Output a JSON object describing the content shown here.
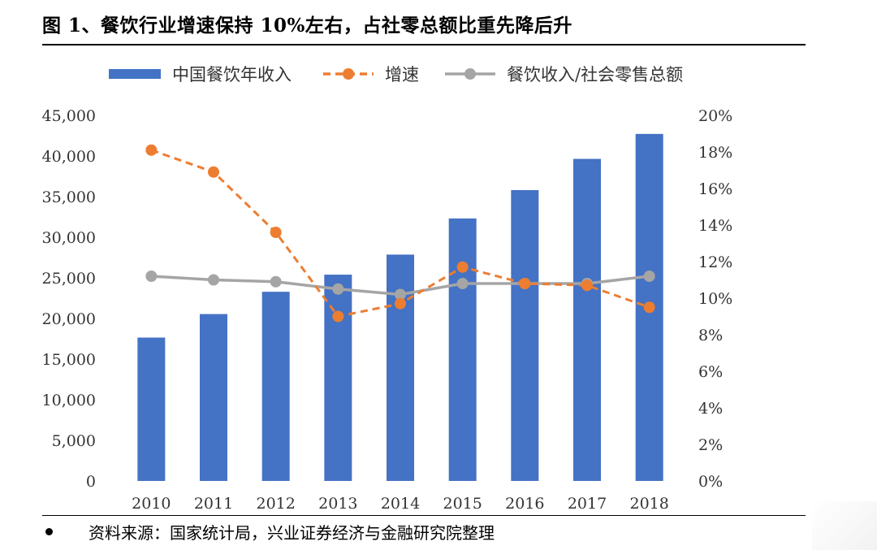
{
  "header": {
    "title": "图 1、餐饮行业增速保持 10%左右，占社零总额比重先降后升"
  },
  "footer": {
    "source": "资料来源：国家统计局，兴业证券经济与金融研究院整理"
  },
  "chart_data": {
    "type": "bar",
    "categories": [
      "2010",
      "2011",
      "2012",
      "2013",
      "2014",
      "2015",
      "2016",
      "2017",
      "2018"
    ],
    "series": [
      {
        "name": "中国餐饮年收入",
        "kind": "bar",
        "axis": "left",
        "color": "#4472c4",
        "values": [
          17648,
          20543,
          23283,
          25392,
          27860,
          32310,
          35799,
          39644,
          42716
        ]
      },
      {
        "name": "增速",
        "kind": "line",
        "axis": "right",
        "color": "#ed7d31",
        "dashed": true,
        "values": [
          18.1,
          16.9,
          13.6,
          9.0,
          9.7,
          11.7,
          10.8,
          10.7,
          9.5
        ]
      },
      {
        "name": "餐饮收入/社会零售总额",
        "kind": "line",
        "axis": "right",
        "color": "#a5a5a5",
        "dashed": false,
        "values": [
          11.2,
          11.0,
          10.9,
          10.5,
          10.2,
          10.8,
          10.8,
          10.8,
          11.2
        ]
      }
    ],
    "ylim": [
      0,
      45000
    ],
    "y_ticks": [
      "0",
      "5,000",
      "10,000",
      "15,000",
      "20,000",
      "25,000",
      "30,000",
      "35,000",
      "40,000",
      "45,000"
    ],
    "y2lim": [
      0,
      20
    ],
    "y2_ticks": [
      "0%",
      "2%",
      "4%",
      "6%",
      "8%",
      "10%",
      "12%",
      "14%",
      "16%",
      "18%",
      "20%"
    ],
    "legend": "top",
    "grid": false
  }
}
